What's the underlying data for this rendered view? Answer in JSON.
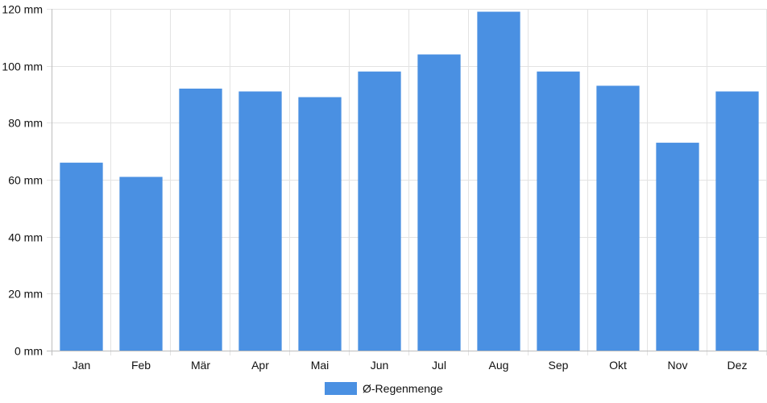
{
  "chart_data": {
    "type": "bar",
    "categories": [
      "Jan",
      "Feb",
      "Mär",
      "Apr",
      "Mai",
      "Jun",
      "Jul",
      "Aug",
      "Sep",
      "Okt",
      "Nov",
      "Dez"
    ],
    "series": [
      {
        "name": "Ø-Regenmenge",
        "values": [
          66,
          61,
          92,
          91,
          89,
          98,
          104,
          119,
          98,
          93,
          73,
          91
        ],
        "color": "#4a90e2"
      }
    ],
    "y_ticks": [
      "0 mm",
      "20 mm",
      "40 mm",
      "60 mm",
      "80 mm",
      "100 mm",
      "120 mm"
    ],
    "ylim": [
      0,
      120
    ],
    "unit": "mm",
    "grid": true,
    "legend_position": "bottom",
    "title": "",
    "xlabel": "",
    "ylabel": ""
  }
}
